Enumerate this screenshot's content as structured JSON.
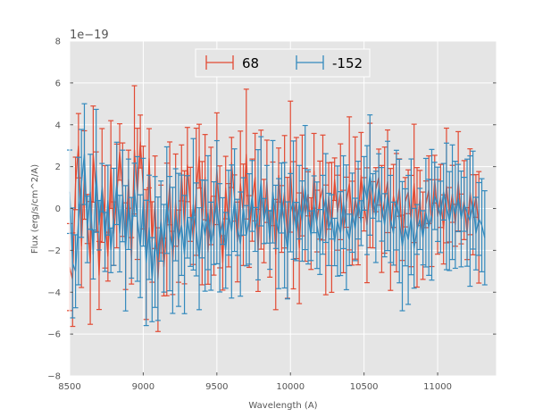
{
  "chart_data": {
    "type": "line",
    "title": "",
    "xlabel": "Wavelength (A)",
    "ylabel": "Flux (erg/s/cm^2/A)",
    "offset_label": "1e−19",
    "xlim": [
      8500,
      11400
    ],
    "ylim": [
      -8,
      8
    ],
    "xticks": [
      8500,
      9000,
      9500,
      10000,
      10500,
      11000
    ],
    "yticks": [
      -8,
      -6,
      -4,
      -2,
      0,
      2,
      4,
      6,
      8
    ],
    "ytick_labels": [
      "−8",
      "−6",
      "−4",
      "−2",
      "0",
      "2",
      "4",
      "6",
      "8"
    ],
    "grid": true,
    "legend_position": "top-center",
    "x_start": 8500,
    "x_step": 20,
    "series": [
      {
        "name": "68",
        "color": "#E24A33",
        "values": [
          -2.8,
          -3.4,
          1.2,
          3.0,
          -1.8,
          1.6,
          -0.5,
          -2.6,
          2.6,
          0.8,
          -3.2,
          1.1,
          -0.4,
          -2.3,
          2.1,
          -1.2,
          0.6,
          2.7,
          0.9,
          -1.8,
          1.4,
          -2.5,
          2.8,
          0.7,
          3.2,
          1.0,
          -2.2,
          2.4,
          -1.6,
          0.3,
          -3.4,
          -0.5,
          -2.8,
          -1.0,
          1.2,
          -2.6,
          0.4,
          -1.8,
          1.7,
          -0.9,
          2.1,
          0.2,
          -1.5,
          0.8,
          2.5,
          -0.7,
          1.5,
          -2.1,
          0.6,
          -1.3,
          1.9,
          -0.4,
          -2.6,
          1.0,
          -0.8,
          2.2,
          0.5,
          -1.6,
          1.2,
          -0.3,
          2.6,
          -1.1,
          0.4,
          1.5,
          -2.0,
          0.9,
          -0.6,
          1.3,
          -1.7,
          0.7,
          -2.2,
          1.6,
          -0.5,
          0.8,
          -1.4,
          2.0,
          -0.8,
          0.5,
          -1.9,
          1.1,
          -0.3,
          0.7,
          -1.2,
          1.8,
          -0.6,
          0.4,
          1.0,
          -1.5,
          0.6,
          -0.9,
          1.4,
          -0.2,
          0.8,
          -1.1,
          0.3,
          1.2,
          -0.7,
          0.5,
          -0.4,
          1.6,
          0.2,
          -0.8,
          1.1,
          -0.3,
          0.9,
          1.5,
          -0.5,
          0.4,
          1.3,
          -1.0,
          0.6,
          -0.2,
          1.0,
          -1.4,
          0.3,
          0.8,
          -0.6,
          1.2,
          -0.9,
          0.5,
          -1.3,
          0.2,
          0.9,
          -0.7,
          1.4,
          -0.4,
          0.6,
          -1.0,
          1.1,
          -0.3,
          0.7,
          -0.8,
          1.3,
          -0.5,
          0.4,
          -1.2,
          0.8,
          -0.3,
          0.6,
          -0.9
        ]
      },
      {
        "name": "-152",
        "color": "#348ABD",
        "values": [
          0.8,
          -2.6,
          -3.0,
          -0.6,
          1.2,
          2.6,
          -1.0,
          0.8,
          -2.2,
          1.8,
          -0.8,
          1.0,
          -1.6,
          0.4,
          -2.0,
          -0.4,
          1.2,
          -1.2,
          0.6,
          -1.9,
          0.2,
          -1.4,
          0.9,
          -0.5,
          -1.8,
          0.3,
          -2.6,
          -0.9,
          -3.4,
          -1.6,
          -2.4,
          -0.6,
          -1.9,
          0.4,
          -1.2,
          -2.0,
          -0.3,
          -1.5,
          -0.8,
          -2.2,
          -0.4,
          -1.6,
          0.2,
          -1.0,
          -2.4,
          -0.5,
          -1.3,
          -0.2,
          -1.8,
          -0.7,
          0.3,
          -1.4,
          -0.6,
          -2.0,
          -0.2,
          -1.1,
          0.4,
          -0.9,
          -1.7,
          0.1,
          -1.3,
          -0.5,
          0.6,
          -1.0,
          -0.3,
          1.3,
          -0.6,
          0.2,
          -1.5,
          0.8,
          -0.4,
          -1.2,
          0.5,
          -0.8,
          -2.0,
          -0.2,
          0.4,
          -1.1,
          0.3,
          -0.6,
          1.0,
          -0.4,
          -1.3,
          0.2,
          -0.8,
          -1.6,
          -0.3,
          0.5,
          -1.0,
          -0.4,
          -1.6,
          -0.6,
          -1.2,
          0.3,
          -0.9,
          -1.5,
          -0.2,
          -1.0,
          0.4,
          -0.7,
          1.2,
          0.4,
          1.6,
          0.6,
          -0.4,
          1.0,
          0.2,
          -0.8,
          0.6,
          -0.5,
          -1.2,
          0.4,
          -0.6,
          -1.8,
          -0.9,
          -1.5,
          -0.4,
          -1.9,
          -1.0,
          -0.5,
          -1.4,
          -0.2,
          -0.9,
          -0.3,
          0.6,
          0.2,
          -0.4,
          0.8,
          0.1,
          -0.6,
          0.3,
          -0.3,
          0.5,
          -0.5,
          0.2,
          -0.2,
          -0.6,
          0.4,
          -1.2,
          -0.5,
          -0.8,
          -1.4
        ]
      }
    ]
  }
}
